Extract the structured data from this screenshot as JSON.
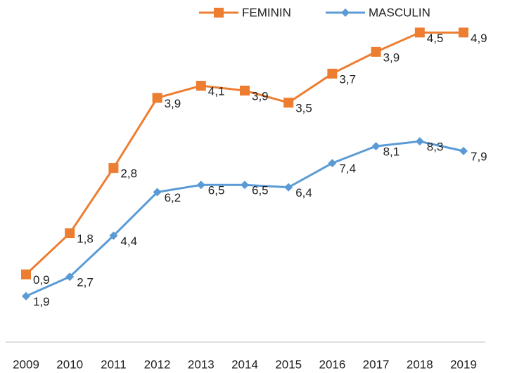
{
  "chart_data": {
    "type": "line",
    "stacked": true,
    "categories": [
      "2009",
      "2010",
      "2011",
      "2012",
      "2013",
      "2014",
      "2015",
      "2016",
      "2017",
      "2018",
      "2019"
    ],
    "series": [
      {
        "name": "FEMININ",
        "color": "#ed7d31",
        "marker": "square",
        "values": [
          0.9,
          1.8,
          2.8,
          3.9,
          4.1,
          3.9,
          3.5,
          3.7,
          3.9,
          4.5,
          4.9
        ],
        "value_labels": [
          "0,9",
          "1,8",
          "2,8",
          "3,9",
          "4,1",
          "3,9",
          "3,5",
          "3,7",
          "3,9",
          "4,5",
          "4,9"
        ]
      },
      {
        "name": "MASCULIN",
        "color": "#5b9bd5",
        "marker": "diamond",
        "values": [
          1.9,
          2.7,
          4.4,
          6.2,
          6.5,
          6.5,
          6.4,
          7.4,
          8.1,
          8.3,
          7.9
        ],
        "value_labels": [
          "1,9",
          "2,7",
          "4,4",
          "6,2",
          "6,5",
          "6,5",
          "6,4",
          "7,4",
          "8,1",
          "8,3",
          "7,9"
        ]
      }
    ],
    "ylim": [
      0,
      14
    ],
    "legend": "top"
  }
}
